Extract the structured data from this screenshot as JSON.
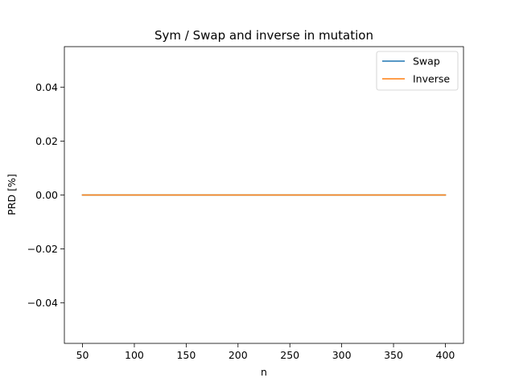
{
  "chart_data": {
    "type": "line",
    "title": "Sym / Swap and inverse in mutation",
    "xlabel": "n",
    "ylabel": "PRD [%]",
    "x": [
      50,
      100,
      150,
      200,
      250,
      300,
      350,
      400
    ],
    "series": [
      {
        "name": "Swap",
        "color": "#1f77b4",
        "values": [
          0,
          0,
          0,
          0,
          0,
          0,
          0,
          0
        ]
      },
      {
        "name": "Inverse",
        "color": "#ff7f0e",
        "values": [
          0,
          0,
          0,
          0,
          0,
          0,
          0,
          0
        ]
      }
    ],
    "xlim": [
      32.5,
      417.5
    ],
    "ylim": [
      -0.055,
      0.055
    ],
    "xticks": [
      50,
      100,
      150,
      200,
      250,
      300,
      350,
      400
    ],
    "xtick_labels": [
      "50",
      "100",
      "150",
      "200",
      "250",
      "300",
      "350",
      "400"
    ],
    "yticks": [
      -0.04,
      -0.02,
      0.0,
      0.02,
      0.04
    ],
    "ytick_labels": [
      "−0.04",
      "−0.02",
      "0.00",
      "0.02",
      "0.04"
    ],
    "grid": false,
    "legend_position": "top-right"
  }
}
